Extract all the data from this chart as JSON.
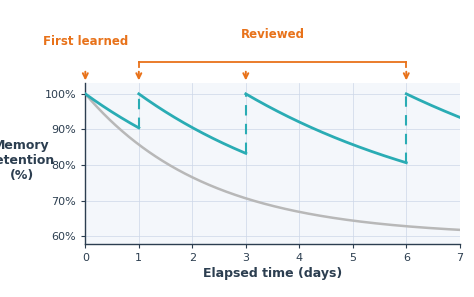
{
  "title": "",
  "xlabel": "Elapsed time (days)",
  "ylabel": "Memory\nretention\n(%)",
  "xlim": [
    0,
    7
  ],
  "ylim": [
    58,
    103
  ],
  "yticks": [
    60,
    70,
    80,
    90,
    100
  ],
  "xticks": [
    0,
    1,
    2,
    3,
    4,
    5,
    6,
    7
  ],
  "gray_color": "#b8b8b8",
  "teal_color": "#2aacb4",
  "dashed_color": "#2aacb4",
  "arrow_color": "#e8721a",
  "bg_color": "#ffffff",
  "plot_bg_color": "#f4f7fb",
  "grid_color": "#cdd6e8",
  "spine_color": "#2c3e50",
  "decay_k_gray": 0.44,
  "decay_k_teal": [
    0.27,
    0.22,
    0.18
  ],
  "review_days": [
    1,
    3,
    6
  ],
  "segment_starts": [
    0,
    1,
    3,
    6
  ],
  "segment_ends": [
    1,
    3,
    6,
    7
  ],
  "label_first_learned": "First learned",
  "label_reviewed": "Reviewed",
  "label_fontsize": 8.5,
  "axis_label_fontsize": 9,
  "tick_fontsize": 8
}
